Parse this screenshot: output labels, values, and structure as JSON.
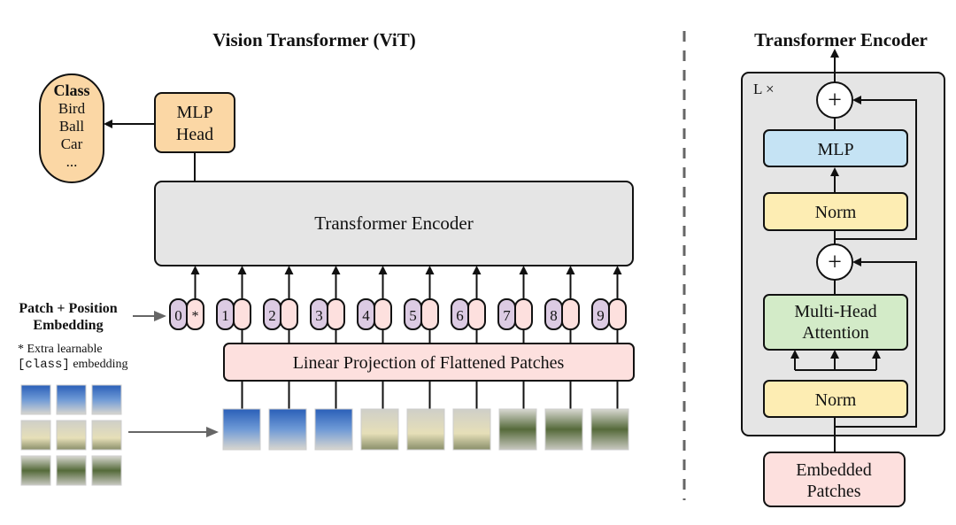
{
  "vit": {
    "title": "Vision Transformer (ViT)",
    "class_box": {
      "title": "Class",
      "items": [
        "Bird",
        "Ball",
        "Car",
        "..."
      ]
    },
    "mlp_head": [
      "MLP",
      "Head"
    ],
    "encoder_label": "Transformer Encoder",
    "embedding_label": [
      "Patch + Position",
      "Embedding"
    ],
    "extra_note": {
      "line1": "* Extra learnable",
      "code": "[class]",
      "rest": " embedding"
    },
    "tokens": [
      "0",
      "1",
      "2",
      "3",
      "4",
      "5",
      "6",
      "7",
      "8",
      "9"
    ],
    "class_token_marker": "*",
    "projection_label": "Linear Projection of Flattened Patches"
  },
  "encoder_detail": {
    "title": "Transformer Encoder",
    "repeat_label": "L ×",
    "plus": "+",
    "mlp": "MLP",
    "norm": "Norm",
    "attention": [
      "Multi-Head",
      "Attention"
    ],
    "input": [
      "Embedded",
      "Patches"
    ]
  },
  "colors": {
    "orange": "#fbd7a5",
    "gray": "#e5e5e5",
    "purple": "#dccbe3",
    "pink": "#fde0de",
    "blue": "#c5e3f4",
    "yellow": "#fdedb3",
    "green": "#d3ebc8"
  }
}
